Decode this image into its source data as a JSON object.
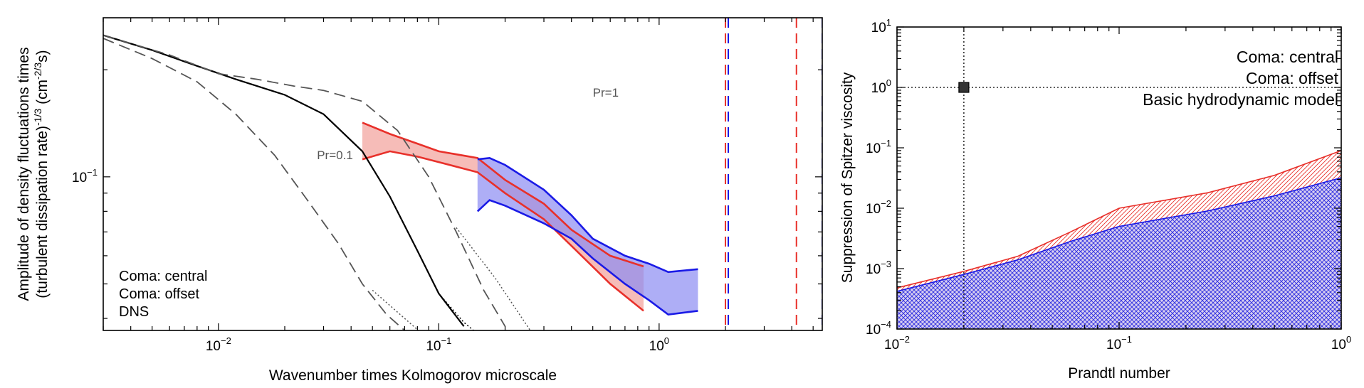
{
  "figure": {
    "panels": 2
  },
  "chart_data": [
    {
      "type": "line",
      "panel": "left",
      "xscale": "log",
      "yscale": "log",
      "xlim": [
        0.003,
        5.5
      ],
      "ylim": [
        0.037,
        0.28
      ],
      "xlabel": "Wavenumber times Kolmogorov microscale",
      "ylabel_line1": "Amplitude of density fluctuations times",
      "ylabel_line2": "(turbulent dissipation rate)",
      "ylabel_exponent": "-1/3",
      "ylabel_units": " (cm",
      "ylabel_units_exp": "-2/3",
      "ylabel_units_end": "s)",
      "xticks": [
        {
          "value": 0.01,
          "base": "10",
          "exp": "−2"
        },
        {
          "value": 0.1,
          "base": "10",
          "exp": "−1"
        },
        {
          "value": 1,
          "base": "10",
          "exp": "0"
        }
      ],
      "yticks": [
        {
          "value": 0.1,
          "base": "10",
          "exp": "−1"
        }
      ],
      "legend": {
        "placement": "bottom-left",
        "entries": [
          {
            "label": "Coma: central",
            "color": "#e8302a"
          },
          {
            "label": "Coma: offset",
            "color": "#1a1ae6"
          },
          {
            "label": "DNS",
            "color": "#000000"
          }
        ]
      },
      "annotations": [
        {
          "text": "Pr=1",
          "x": 0.5,
          "y": 0.168
        },
        {
          "text": "Pr=0.1",
          "x": 0.028,
          "y": 0.112
        }
      ],
      "series": [
        {
          "name": "DNS",
          "color": "#000000",
          "style": "solid",
          "x": [
            0.003,
            0.005,
            0.008,
            0.012,
            0.02,
            0.03,
            0.045,
            0.06,
            0.08,
            0.1,
            0.13
          ],
          "y": [
            0.25,
            0.227,
            0.205,
            0.188,
            0.17,
            0.15,
            0.118,
            0.088,
            0.062,
            0.047,
            0.038
          ]
        },
        {
          "name": "DNS extension",
          "color": "#000000",
          "style": "dotted",
          "x": [
            0.1,
            0.13,
            0.16
          ],
          "y": [
            0.047,
            0.039,
            0.035
          ]
        },
        {
          "name": "Pr=1",
          "color": "#555555",
          "style": "dashed",
          "x": [
            0.003,
            0.006,
            0.01,
            0.015,
            0.022,
            0.03,
            0.045,
            0.065,
            0.09,
            0.12,
            0.16,
            0.2
          ],
          "y": [
            0.25,
            0.22,
            0.195,
            0.188,
            0.18,
            0.175,
            0.163,
            0.135,
            0.1,
            0.07,
            0.048,
            0.038
          ]
        },
        {
          "name": "Pr=1 dotted extension",
          "color": "#555555",
          "style": "dotted",
          "x": [
            0.12,
            0.18,
            0.26
          ],
          "y": [
            0.072,
            0.052,
            0.037
          ]
        },
        {
          "name": "Pr=0.1",
          "color": "#555555",
          "style": "dashed",
          "x": [
            0.003,
            0.005,
            0.008,
            0.012,
            0.018,
            0.025,
            0.035,
            0.045,
            0.058,
            0.07
          ],
          "y": [
            0.245,
            0.215,
            0.185,
            0.15,
            0.115,
            0.087,
            0.065,
            0.05,
            0.041,
            0.037
          ]
        },
        {
          "name": "Pr=0.1 dotted extension",
          "color": "#555555",
          "style": "dotted",
          "x": [
            0.05,
            0.07,
            0.085
          ],
          "y": [
            0.048,
            0.04,
            0.036
          ]
        }
      ],
      "bands": [
        {
          "name": "Coma: central",
          "color": "#e8302a",
          "fill": "#f2a09a",
          "x": [
            0.045,
            0.06,
            0.08,
            0.1,
            0.15,
            0.2,
            0.3,
            0.4,
            0.6,
            0.85
          ],
          "upper": [
            0.142,
            0.132,
            0.124,
            0.118,
            0.113,
            0.098,
            0.084,
            0.071,
            0.06,
            0.056
          ],
          "lower": [
            0.112,
            0.118,
            0.114,
            0.11,
            0.103,
            0.09,
            0.076,
            0.064,
            0.05,
            0.042
          ]
        },
        {
          "name": "Coma: offset",
          "color": "#1a1ae6",
          "fill": "#8c8cf2",
          "x": [
            0.15,
            0.17,
            0.2,
            0.3,
            0.4,
            0.5,
            0.7,
            0.9,
            1.1,
            1.5
          ],
          "upper": [
            0.112,
            0.113,
            0.108,
            0.092,
            0.078,
            0.067,
            0.06,
            0.057,
            0.054,
            0.055
          ],
          "lower": [
            0.08,
            0.086,
            0.083,
            0.074,
            0.067,
            0.059,
            0.05,
            0.045,
            0.041,
            0.042
          ]
        }
      ],
      "vlines": [
        {
          "x": 2.0,
          "color": "#e8302a"
        },
        {
          "x": 2.06,
          "color": "#1a1ae6"
        },
        {
          "x": 4.2,
          "color": "#e8302a"
        },
        {
          "x": 5.5,
          "color": "#1a1ae6"
        }
      ]
    },
    {
      "type": "area",
      "panel": "right",
      "xscale": "log",
      "yscale": "log",
      "xlim": [
        0.01,
        1
      ],
      "ylim": [
        0.0001,
        10
      ],
      "xlabel": "Prandtl number",
      "ylabel": "Suppression of Spitzer viscosity",
      "xticks": [
        {
          "value": 0.01,
          "base": "10",
          "exp": "−2"
        },
        {
          "value": 0.1,
          "base": "10",
          "exp": "−1"
        },
        {
          "value": 1,
          "base": "10",
          "exp": "0"
        }
      ],
      "yticks": [
        {
          "value": 0.0001,
          "base": "10",
          "exp": "−4"
        },
        {
          "value": 0.001,
          "base": "10",
          "exp": "−3"
        },
        {
          "value": 0.01,
          "base": "10",
          "exp": "−2"
        },
        {
          "value": 0.1,
          "base": "10",
          "exp": "−1"
        },
        {
          "value": 1,
          "base": "10",
          "exp": "0"
        },
        {
          "value": 10,
          "base": "10",
          "exp": "1"
        }
      ],
      "legend": {
        "placement": "top-right",
        "entries": [
          {
            "label": "Coma: central",
            "color": "#e8302a"
          },
          {
            "label": "Coma: offset",
            "color": "#1a1ae6"
          },
          {
            "label": "Basic hydrodynamic model",
            "color": "#000000"
          }
        ]
      },
      "reference_point": {
        "x": 0.02,
        "y": 1
      },
      "regions": [
        {
          "name": "Coma: central",
          "color": "#e8302a",
          "hatch": "diagonal",
          "x": [
            0.01,
            0.02,
            0.035,
            0.06,
            0.1,
            0.25,
            0.5,
            1
          ],
          "y": [
            0.00048,
            0.0009,
            0.0016,
            0.004,
            0.01,
            0.018,
            0.035,
            0.09
          ]
        },
        {
          "name": "Coma: offset",
          "color": "#1a1ae6",
          "hatch": "crosshatch",
          "x": [
            0.01,
            0.02,
            0.035,
            0.06,
            0.1,
            0.25,
            0.5,
            1
          ],
          "y": [
            0.00042,
            0.0008,
            0.0014,
            0.0028,
            0.005,
            0.009,
            0.016,
            0.032
          ]
        }
      ]
    }
  ]
}
